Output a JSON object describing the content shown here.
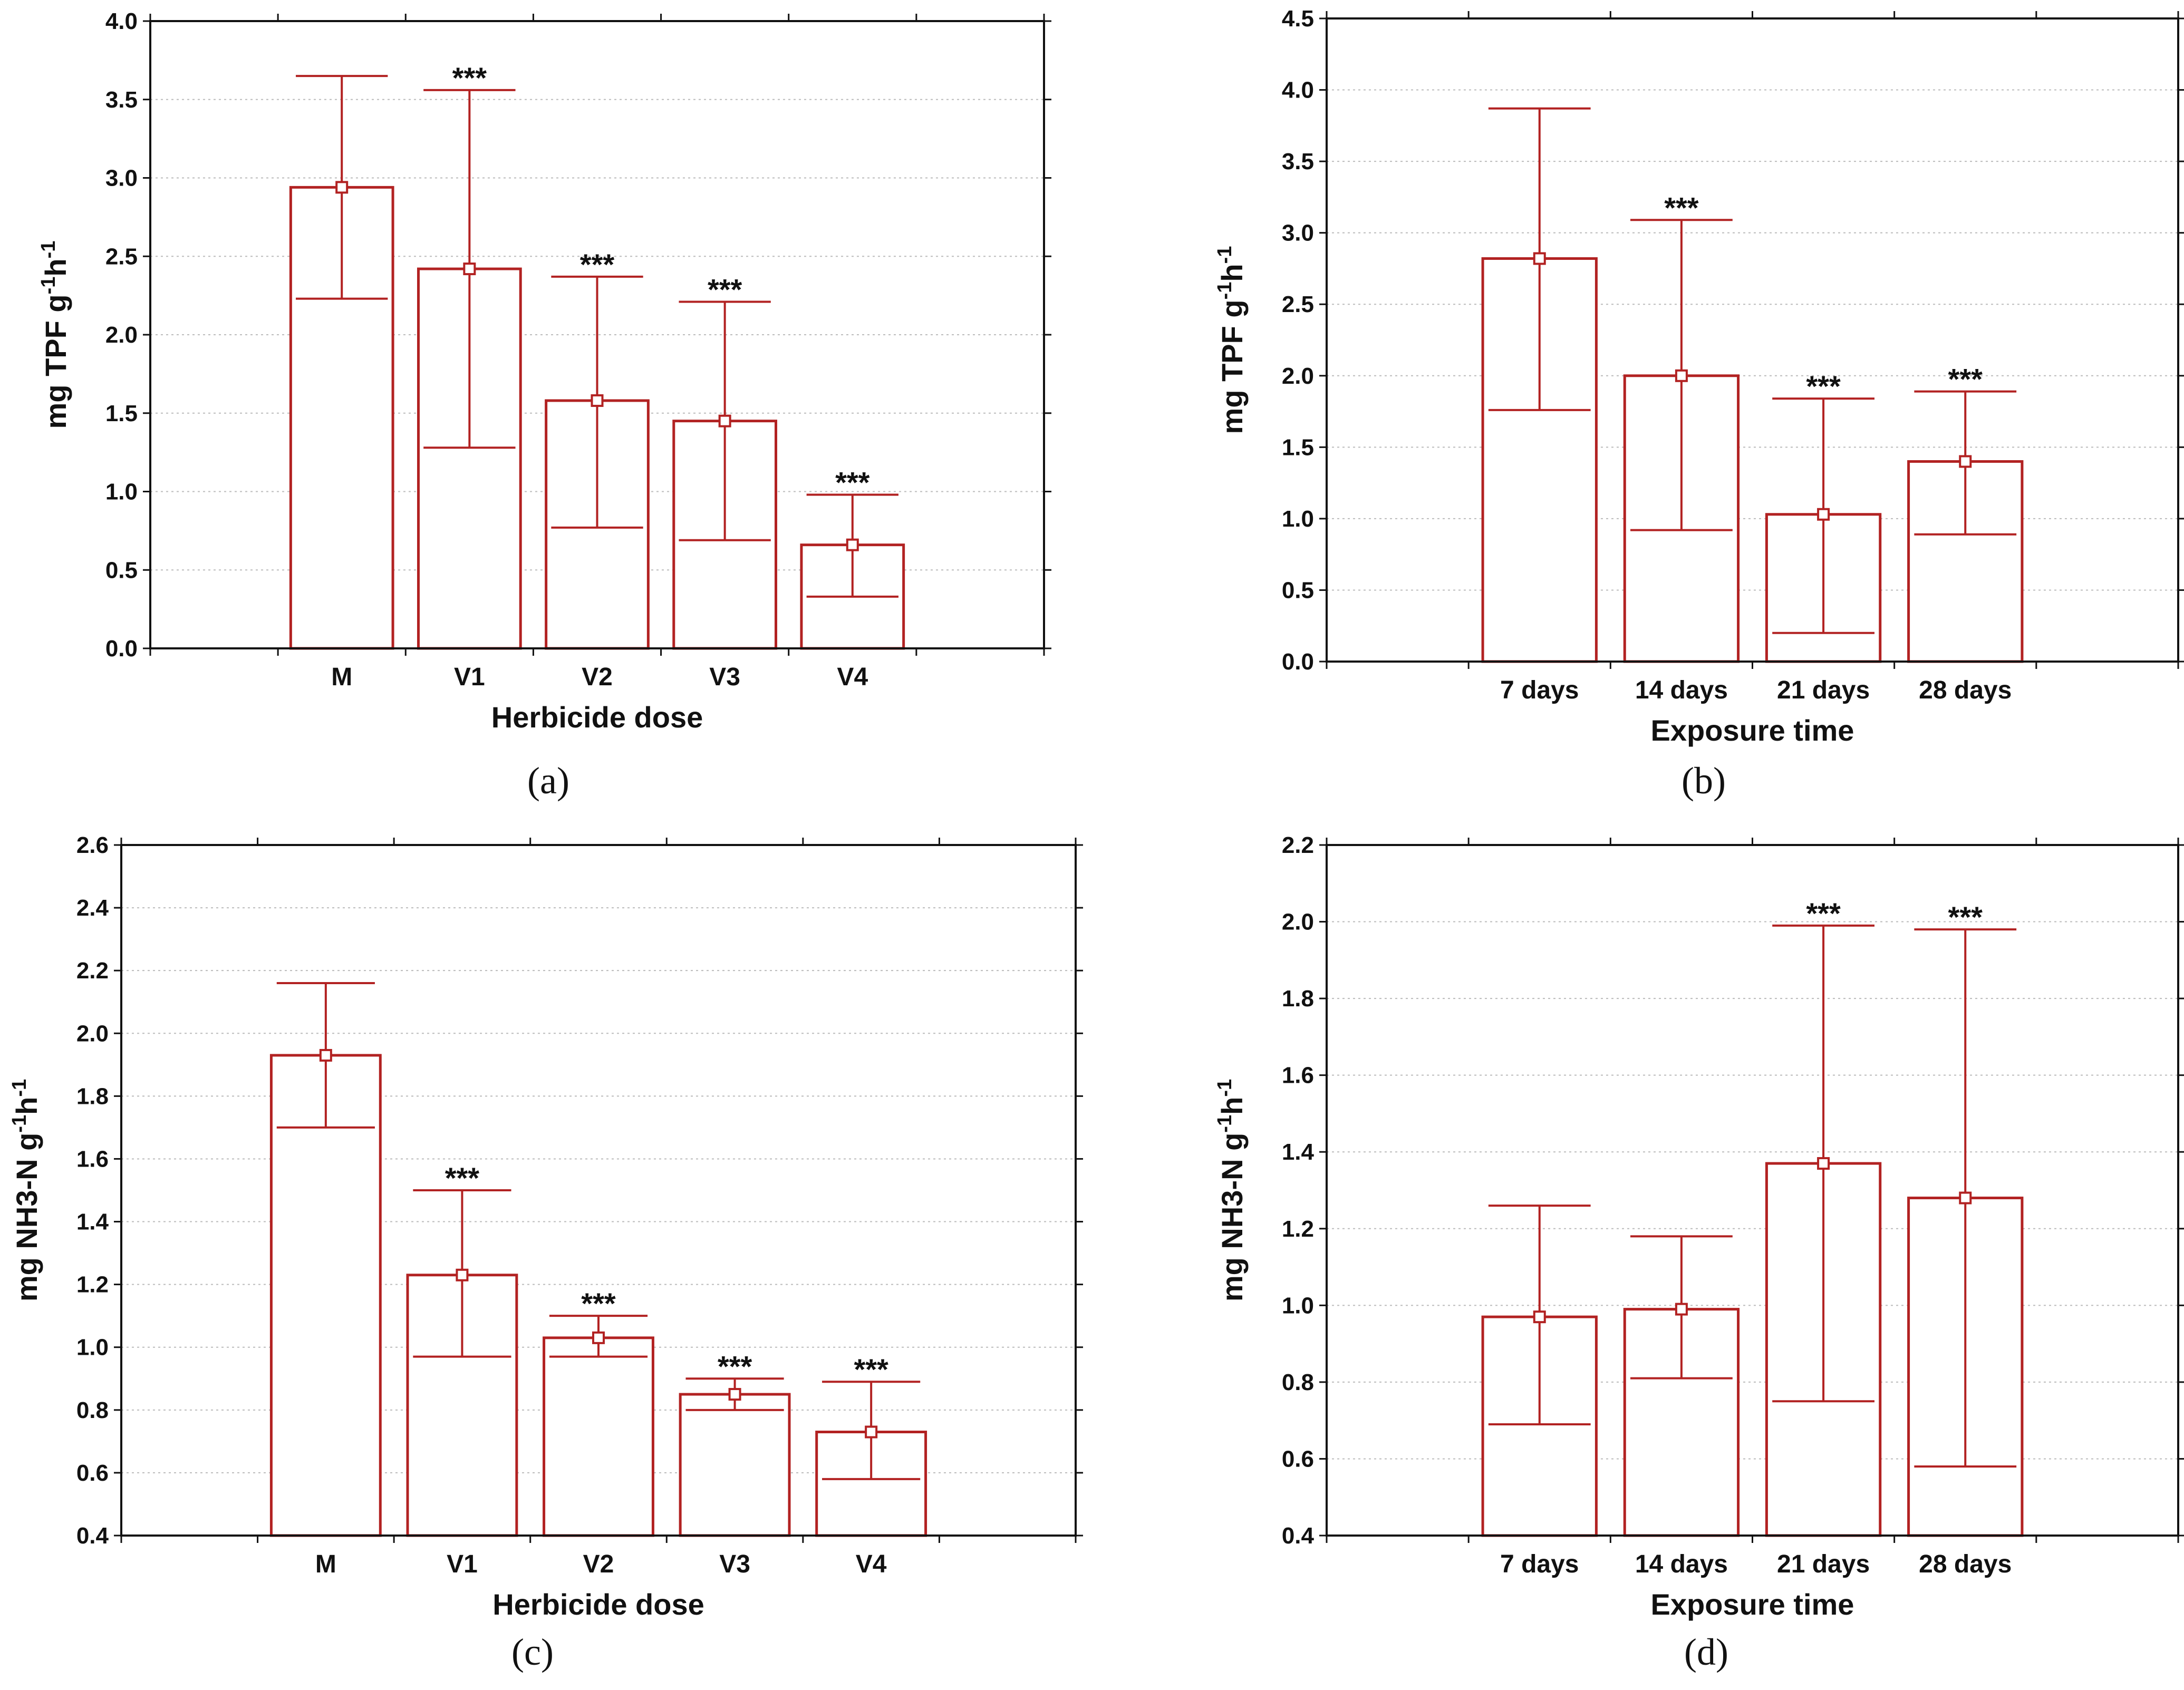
{
  "colors": {
    "bar": "#b22222",
    "grid": "#bbbbbb",
    "axis": "#111111"
  },
  "chart_data": [
    {
      "type": "bar",
      "panel_label": "(a)",
      "xlabel": "Herbicide dose",
      "ylabel_main": "mg TPF g",
      "ylabel_sup1": "-1",
      "ylabel_mid": "h",
      "ylabel_sup2": "-1",
      "ylim": [
        0,
        4
      ],
      "yticks": [
        "0.0",
        "0.5",
        "1.0",
        "1.5",
        "2.0",
        "2.5",
        "3.0",
        "3.5",
        "4.0"
      ],
      "categories": [
        "M",
        "V1",
        "V2",
        "V3",
        "V4"
      ],
      "values": [
        2.94,
        2.42,
        1.58,
        1.45,
        0.66
      ],
      "err_low": [
        2.23,
        1.28,
        0.77,
        0.69,
        0.33
      ],
      "err_high": [
        3.65,
        3.56,
        2.37,
        2.21,
        0.98
      ],
      "significance": [
        "",
        "***",
        "***",
        "***",
        "***"
      ],
      "x_slots": 7,
      "x_start_slot": 1
    },
    {
      "type": "bar",
      "panel_label": "(b)",
      "xlabel": "Exposure time",
      "ylabel_main": "mg TPF g",
      "ylabel_sup1": "-1",
      "ylabel_mid": "h",
      "ylabel_sup2": "-1",
      "ylim": [
        0,
        4.5
      ],
      "yticks": [
        "0.0",
        "0.5",
        "1.0",
        "1.5",
        "2.0",
        "2.5",
        "3.0",
        "3.5",
        "4.0",
        "4.5"
      ],
      "categories": [
        "7 days",
        "14 days",
        "21 days",
        "28 days"
      ],
      "values": [
        2.82,
        2.0,
        1.03,
        1.4
      ],
      "err_low": [
        1.76,
        0.92,
        0.2,
        0.89
      ],
      "err_high": [
        3.87,
        3.09,
        1.84,
        1.89
      ],
      "significance": [
        "",
        "***",
        "***",
        "***"
      ],
      "x_slots": 6,
      "x_start_slot": 1
    },
    {
      "type": "bar",
      "panel_label": "(c)",
      "xlabel": "Herbicide dose",
      "ylabel_main": "mg NH3-N g",
      "ylabel_sup1": "-1",
      "ylabel_mid": "h",
      "ylabel_sup2": "-1",
      "ylim": [
        0.4,
        2.6
      ],
      "yticks": [
        "0.4",
        "0.6",
        "0.8",
        "1.0",
        "1.2",
        "1.4",
        "1.6",
        "1.8",
        "2.0",
        "2.2",
        "2.4",
        "2.6"
      ],
      "categories": [
        "M",
        "V1",
        "V2",
        "V3",
        "V4"
      ],
      "values": [
        1.93,
        1.23,
        1.03,
        0.85,
        0.73
      ],
      "err_low": [
        1.7,
        0.97,
        0.97,
        0.8,
        0.58
      ],
      "err_high": [
        2.16,
        1.5,
        1.1,
        0.9,
        0.89
      ],
      "significance": [
        "",
        "***",
        "***",
        "***",
        "***"
      ],
      "x_slots": 7,
      "x_start_slot": 1
    },
    {
      "type": "bar",
      "panel_label": "(d)",
      "xlabel": "Exposure time",
      "ylabel_main": "mg NH3-N g",
      "ylabel_sup1": "-1",
      "ylabel_mid": "h",
      "ylabel_sup2": "-1",
      "ylim": [
        0.4,
        2.2
      ],
      "yticks": [
        "0.4",
        "0.6",
        "0.8",
        "1.0",
        "1.2",
        "1.4",
        "1.6",
        "1.8",
        "2.0",
        "2.2"
      ],
      "categories": [
        "7 days",
        "14 days",
        "21 days",
        "28 days"
      ],
      "values": [
        0.97,
        0.99,
        1.37,
        1.28
      ],
      "err_low": [
        0.69,
        0.81,
        0.75,
        0.58
      ],
      "err_high": [
        1.26,
        1.18,
        1.99,
        1.98
      ],
      "significance": [
        "",
        "",
        "***",
        "***"
      ],
      "x_slots": 6,
      "x_start_slot": 1
    }
  ]
}
